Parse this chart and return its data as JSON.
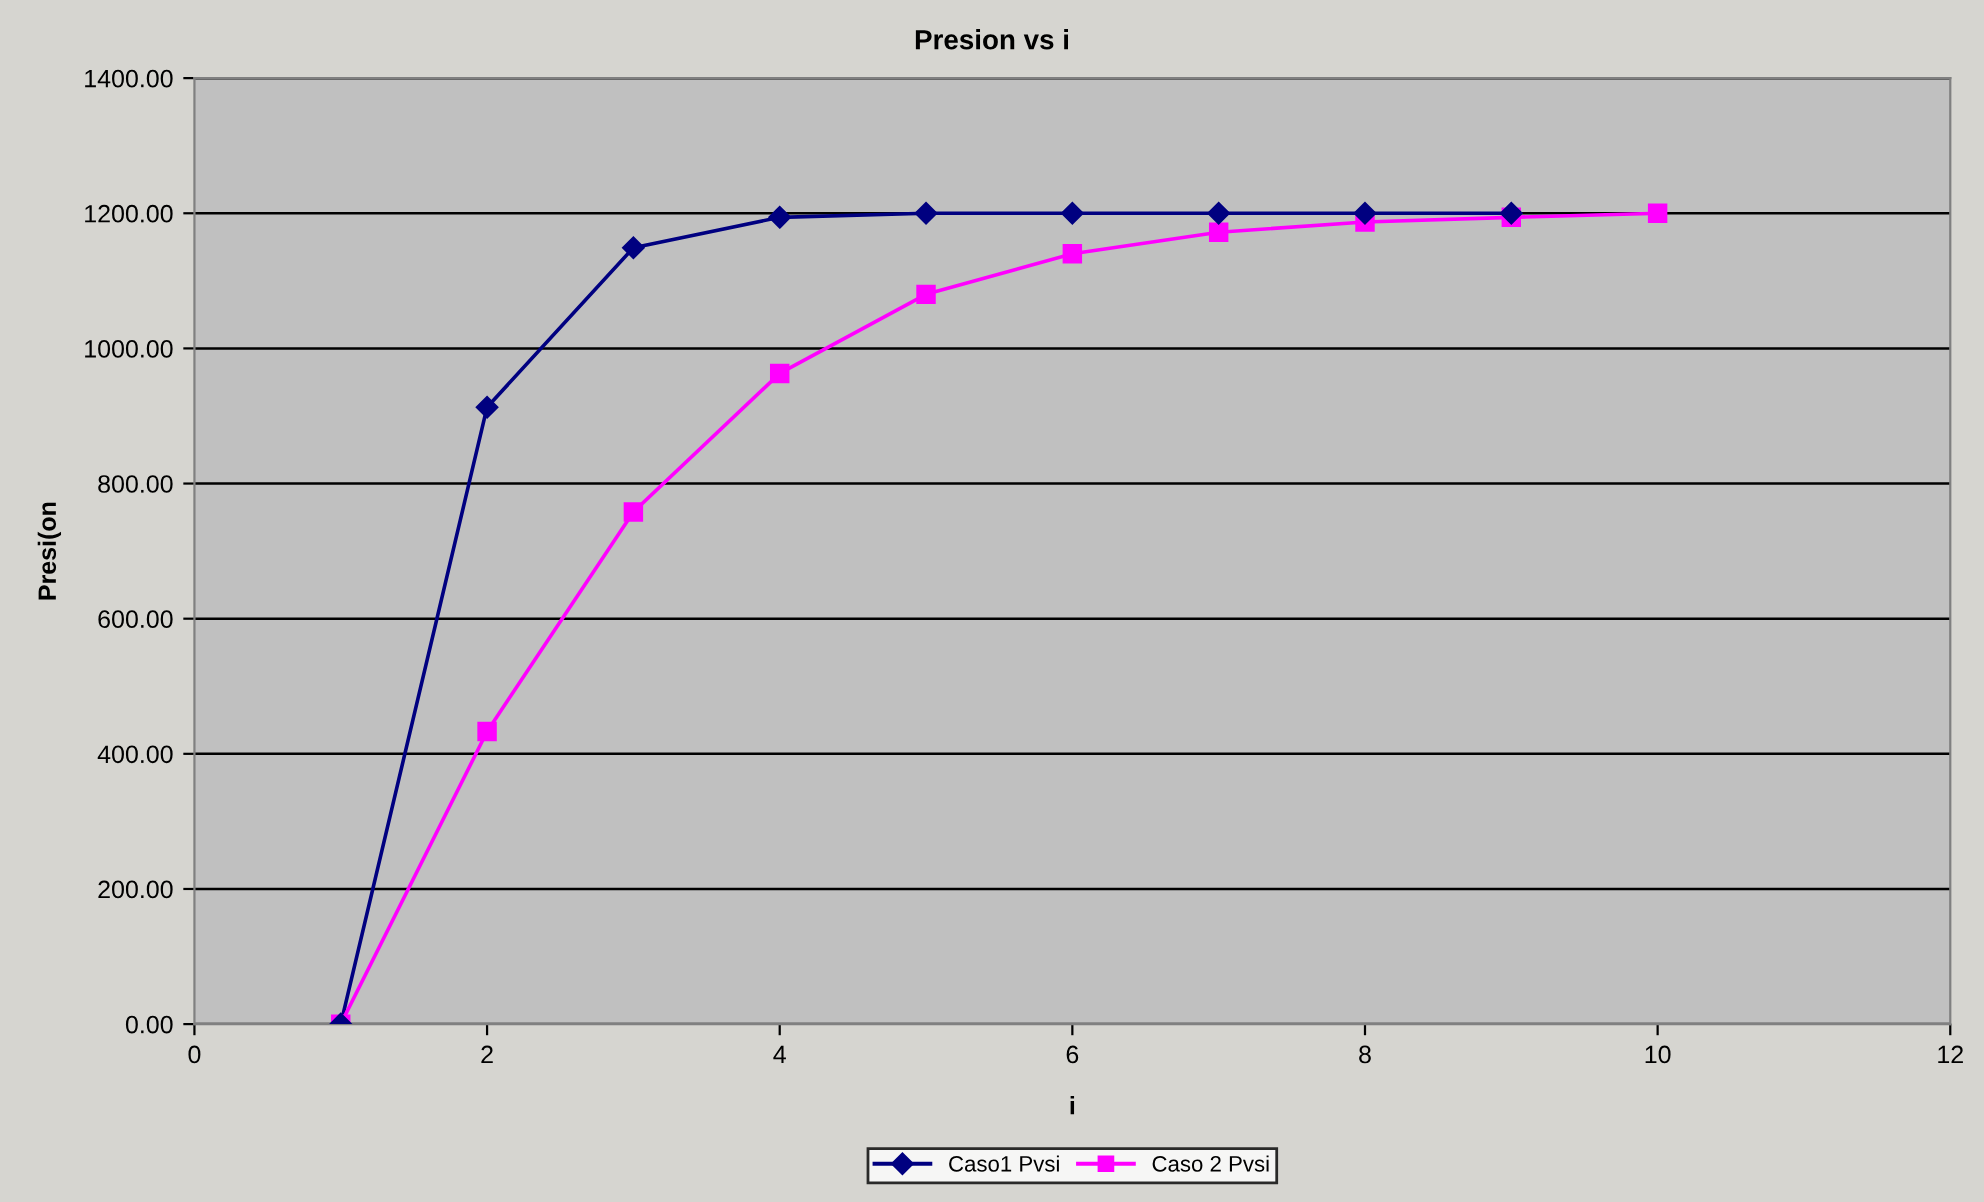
{
  "chart_data": {
    "type": "line",
    "title": "Presion vs i",
    "xlabel": "i",
    "ylabel": "Presi(on",
    "xlim": [
      0,
      12
    ],
    "xticks": [
      0,
      2,
      4,
      6,
      8,
      10,
      12
    ],
    "ylim": [
      0,
      1400
    ],
    "yticks": [
      {
        "value": 0,
        "label": "0.00"
      },
      {
        "value": 200,
        "label": "200.00"
      },
      {
        "value": 400,
        "label": "400.00"
      },
      {
        "value": 600,
        "label": "600.00"
      },
      {
        "value": 800,
        "label": "800.00"
      },
      {
        "value": 1000,
        "label": "1000.00"
      },
      {
        "value": 1200,
        "label": "1200.00"
      },
      {
        "value": 1400,
        "label": "1400.00"
      }
    ],
    "grid": "y",
    "legend": "bottom",
    "series": [
      {
        "name": "Caso1 Pvsi",
        "color": "#000080",
        "marker": "diamond",
        "x": [
          1,
          2,
          3,
          4,
          5,
          6,
          7,
          8,
          9
        ],
        "values": [
          0,
          913,
          1149,
          1194,
          1200,
          1200,
          1200,
          1200,
          1200
        ]
      },
      {
        "name": "Caso 2 Pvsi",
        "color": "#ff00ff",
        "marker": "square",
        "x": [
          1,
          2,
          3,
          4,
          5,
          6,
          7,
          8,
          9,
          10
        ],
        "values": [
          0,
          433,
          758,
          963,
          1080,
          1140,
          1172,
          1187,
          1194,
          1200
        ]
      }
    ]
  }
}
